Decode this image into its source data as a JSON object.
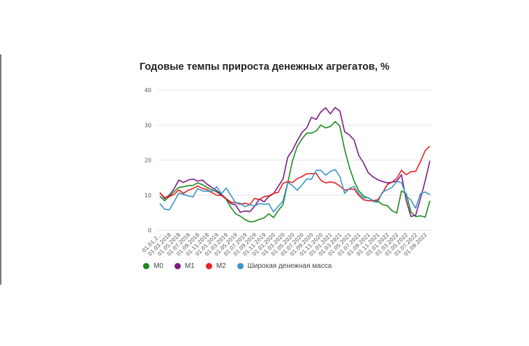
{
  "chart_data": {
    "type": "line",
    "title": "Годовые темпы прироста денежных агрегатов, %",
    "ylim": [
      0,
      40
    ],
    "yticks": [
      0,
      10,
      20,
      30,
      40
    ],
    "grid": true,
    "legend_position": "bottom-left",
    "x_tick_labels": [
      "01.01.2...",
      "01.03.2018",
      "01.05.2018",
      "01.07.2018",
      "01.09.2018",
      "01.11.2018",
      "01.01.2019",
      "01.03.2019",
      "01.05.2019",
      "01.07.2019",
      "01.09.2019",
      "01.11.2019",
      "01.01.2020",
      "01.03.2020",
      "01.05.2020",
      "01.07.2020",
      "01.09.2020",
      "01.11.2020",
      "01.01.2021",
      "01.03.2021",
      "01.05.2021",
      "01.07.2021",
      "01.09.2021",
      "01.11.2021",
      "01.01.2022",
      "01.03.2022",
      "01.05.2022",
      "01.07.2022",
      "01.09.2022"
    ],
    "series": [
      {
        "name": "M0",
        "color": "#1a8a1a",
        "values": [
          9.7,
          8.4,
          9.6,
          11.0,
          12.2,
          12.4,
          12.7,
          12.8,
          13.5,
          13.0,
          12.2,
          11.5,
          10.9,
          10.0,
          8.8,
          6.5,
          4.7,
          4.0,
          3.0,
          2.4,
          2.5,
          3.1,
          3.5,
          4.7,
          3.6,
          5.6,
          7.3,
          13.5,
          19.8,
          23.9,
          26.0,
          27.7,
          27.7,
          28.3,
          30.0,
          29.2,
          29.6,
          31.0,
          29.7,
          23.0,
          18.0,
          14.0,
          11.2,
          9.8,
          9.2,
          8.5,
          8.3,
          7.3,
          7.0,
          5.6,
          4.9,
          11.2,
          10.4,
          5.2,
          3.9,
          4.1,
          3.7,
          8.4
        ]
      },
      {
        "name": "M1",
        "color": "#7b1a85",
        "values": [
          10.7,
          9.0,
          10.0,
          11.8,
          14.3,
          13.6,
          14.3,
          14.6,
          14.0,
          14.3,
          13.1,
          12.2,
          11.3,
          10.2,
          9.0,
          7.6,
          7.2,
          5.1,
          5.5,
          5.3,
          6.8,
          8.9,
          8.1,
          9.6,
          10.4,
          12.5,
          14.6,
          20.8,
          22.8,
          25.5,
          27.9,
          29.2,
          32.2,
          31.6,
          33.8,
          34.9,
          33.2,
          35.0,
          34.0,
          28.1,
          27.2,
          25.7,
          21.3,
          19.2,
          16.4,
          15.2,
          14.4,
          13.9,
          13.5,
          13.7,
          14.0,
          15.8,
          8.5,
          3.9,
          4.3,
          9.0,
          14.0,
          19.8
        ]
      },
      {
        "name": "M2",
        "color": "#e82020",
        "values": [
          10.7,
          9.3,
          9.6,
          10.2,
          11.5,
          10.5,
          11.4,
          11.9,
          12.6,
          11.9,
          11.6,
          10.7,
          10.0,
          9.9,
          9.0,
          8.0,
          7.8,
          7.4,
          7.7,
          7.3,
          9.1,
          8.7,
          9.6,
          9.8,
          10.5,
          10.8,
          13.4,
          13.9,
          13.6,
          14.7,
          15.3,
          16.1,
          16.1,
          16.2,
          14.2,
          13.5,
          13.8,
          13.5,
          12.6,
          11.4,
          11.7,
          11.7,
          9.9,
          8.7,
          8.4,
          8.4,
          8.7,
          10.6,
          13.0,
          13.7,
          14.8,
          17.1,
          15.8,
          16.7,
          16.8,
          19.5,
          22.7,
          24.0
        ]
      },
      {
        "name": "Широкая денежная масса",
        "color": "#3a95c8",
        "values": [
          7.6,
          6.0,
          5.8,
          8.1,
          10.6,
          10.2,
          9.8,
          9.5,
          11.9,
          11.2,
          11.1,
          11.1,
          12.4,
          10.4,
          12.0,
          10.0,
          7.8,
          7.7,
          6.7,
          7.3,
          6.9,
          7.6,
          7.4,
          7.5,
          5.2,
          6.8,
          8.3,
          13.7,
          12.7,
          11.4,
          12.9,
          14.6,
          14.5,
          17.1,
          17.1,
          15.7,
          16.8,
          17.3,
          15.3,
          10.5,
          11.9,
          12.5,
          10.4,
          9.2,
          9.3,
          8.2,
          8.0,
          10.9,
          11.5,
          12.2,
          13.9,
          13.6,
          9.8,
          8.6,
          6.3,
          10.4,
          10.9,
          10.1
        ]
      }
    ]
  }
}
